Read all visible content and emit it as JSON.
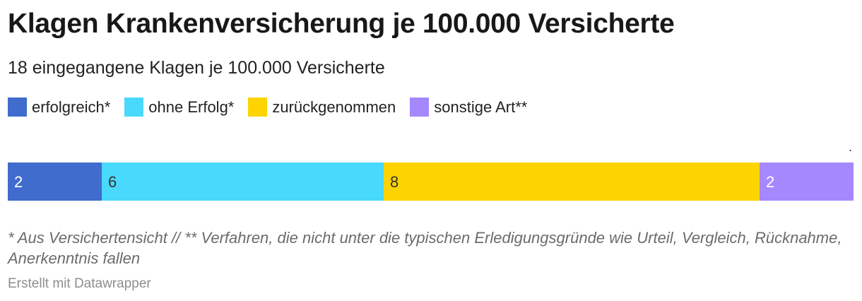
{
  "header": {
    "title": "Klagen Krankenversicherung je 100.000 Versicherte",
    "subtitle": "18 eingegangene Klagen je 100.000 Versicherte"
  },
  "chart_data": {
    "type": "bar",
    "orientation": "horizontal-stacked",
    "categories": [
      ""
    ],
    "series": [
      {
        "name": "erfolgreich*",
        "values": [
          2
        ],
        "color": "#3f6ccd",
        "label_color": "#ffffff"
      },
      {
        "name": "ohne Erfolg*",
        "values": [
          6
        ],
        "color": "#49d9fc",
        "label_color": "#333333"
      },
      {
        "name": "zurückgenommen",
        "values": [
          8
        ],
        "color": "#fed400",
        "label_color": "#333333"
      },
      {
        "name": "sonstige Art**",
        "values": [
          2
        ],
        "color": "#a588fe",
        "label_color": "#ffffff"
      }
    ],
    "xlim": [
      0,
      18
    ],
    "legend": "top-left",
    "grid": false
  },
  "row_label": ".",
  "footer": {
    "note": "* Aus Versichertensicht // ** Verfahren, die nicht unter die typischen Erledigungsgründe wie Urteil, Vergleich, Rücknahme, Anerkenntnis fallen",
    "credit": "Erstellt mit Datawrapper"
  }
}
